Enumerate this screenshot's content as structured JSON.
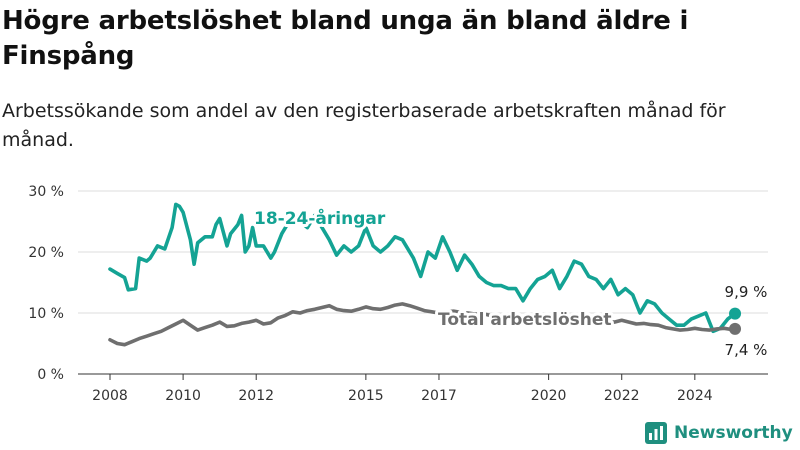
{
  "title": "Högre arbetslöshet bland unga än bland äldre i Finspång",
  "subtitle": "Arbetssökande som andel av den registerbaserade arbetskraften månad för månad.",
  "brand": {
    "name": "Newsworthy",
    "color": "#1f8f7f",
    "icon": "bar-chart-icon"
  },
  "colors": {
    "youth": "#14a394",
    "total": "#6f6f6f",
    "grid": "#dddddd"
  },
  "chart_data": {
    "type": "line",
    "y_unit": "%",
    "ylim": [
      0,
      30
    ],
    "y_ticks": [
      0,
      10,
      20,
      30
    ],
    "y_tick_labels": [
      "0 %",
      "10 %",
      "20 %",
      "30 %"
    ],
    "xlim": [
      2008.0,
      2025.4
    ],
    "x_ticks": [
      2008,
      2010,
      2012,
      2015,
      2017,
      2020,
      2022,
      2024
    ],
    "grid": true,
    "legend": "direct labels on lines",
    "series": [
      {
        "name": "18-24-åringar",
        "label": "18-24-åringar",
        "end_label": "9,9 %",
        "x": [
          2008.0,
          2008.2,
          2008.4,
          2008.5,
          2008.7,
          2008.8,
          2009.0,
          2009.1,
          2009.3,
          2009.5,
          2009.7,
          2009.8,
          2009.9,
          2010.0,
          2010.2,
          2010.3,
          2010.4,
          2010.6,
          2010.8,
          2010.9,
          2011.0,
          2011.2,
          2011.3,
          2011.5,
          2011.6,
          2011.7,
          2011.8,
          2011.9,
          2012.0,
          2012.2,
          2012.4,
          2012.5,
          2012.7,
          2012.9,
          2013.0,
          2013.2,
          2013.4,
          2013.6,
          2013.8,
          2014.0,
          2014.2,
          2014.4,
          2014.6,
          2014.8,
          2015.0,
          2015.2,
          2015.4,
          2015.6,
          2015.8,
          2016.0,
          2016.3,
          2016.5,
          2016.7,
          2016.9,
          2017.1,
          2017.3,
          2017.5,
          2017.7,
          2017.9,
          2018.1,
          2018.3,
          2018.5,
          2018.7,
          2018.9,
          2019.1,
          2019.3,
          2019.5,
          2019.7,
          2019.9,
          2020.1,
          2020.3,
          2020.5,
          2020.7,
          2020.9,
          2021.1,
          2021.3,
          2021.5,
          2021.7,
          2021.9,
          2022.1,
          2022.3,
          2022.5,
          2022.7,
          2022.9,
          2023.1,
          2023.3,
          2023.5,
          2023.7,
          2023.9,
          2024.1,
          2024.3,
          2024.5,
          2024.7,
          2024.9,
          2025.1
        ],
        "y": [
          17.2,
          16.5,
          15.8,
          13.8,
          14,
          19,
          18.5,
          19,
          21,
          20.5,
          24,
          27.8,
          27.5,
          26.5,
          22,
          18,
          21.5,
          22.5,
          22.5,
          24.5,
          25.5,
          21,
          23,
          24.5,
          26,
          20,
          21,
          24,
          21,
          21,
          19,
          20,
          23,
          25,
          24.5,
          25,
          24,
          26,
          24,
          22,
          19.5,
          21,
          20,
          21,
          24,
          21,
          20,
          21,
          22.5,
          22,
          19,
          16,
          20,
          19,
          22.5,
          20,
          17,
          19.5,
          18,
          16,
          15,
          14.5,
          14.5,
          14,
          14,
          12,
          14,
          15.5,
          16,
          17,
          14,
          16,
          18.5,
          18,
          16,
          15.5,
          14,
          15.5,
          13,
          14,
          13,
          10,
          12,
          11.5,
          10,
          9,
          8,
          8,
          9,
          9.5,
          10,
          7,
          7.5,
          9,
          9.9
        ]
      },
      {
        "name": "Total arbetslöshet",
        "label": "Total arbetslöshet",
        "end_label": "7,4 %",
        "x": [
          2008.0,
          2008.2,
          2008.4,
          2008.6,
          2008.8,
          2009.0,
          2009.2,
          2009.4,
          2009.6,
          2009.8,
          2010.0,
          2010.2,
          2010.4,
          2010.6,
          2010.8,
          2011.0,
          2011.2,
          2011.4,
          2011.6,
          2011.8,
          2012.0,
          2012.2,
          2012.4,
          2012.6,
          2012.8,
          2013.0,
          2013.2,
          2013.4,
          2013.6,
          2013.8,
          2014.0,
          2014.2,
          2014.4,
          2014.6,
          2014.8,
          2015.0,
          2015.2,
          2015.4,
          2015.6,
          2015.8,
          2016.0,
          2016.2,
          2016.4,
          2016.6,
          2016.8,
          2017.0,
          2017.2,
          2017.4,
          2017.6,
          2017.8,
          2018.0,
          2018.2,
          2018.4,
          2018.6,
          2018.8,
          2019.0,
          2019.2,
          2019.4,
          2019.6,
          2019.8,
          2020.0,
          2020.2,
          2020.4,
          2020.6,
          2020.8,
          2021.0,
          2021.2,
          2021.4,
          2021.6,
          2021.8,
          2022.0,
          2022.2,
          2022.4,
          2022.6,
          2022.8,
          2023.0,
          2023.2,
          2023.4,
          2023.6,
          2023.8,
          2024.0,
          2024.2,
          2024.4,
          2024.6,
          2024.8,
          2025.0,
          2025.1
        ],
        "y": [
          5.6,
          5.0,
          4.8,
          5.3,
          5.8,
          6.2,
          6.6,
          7.0,
          7.6,
          8.2,
          8.8,
          8.0,
          7.2,
          7.6,
          8.0,
          8.5,
          7.8,
          7.9,
          8.3,
          8.5,
          8.8,
          8.2,
          8.4,
          9.2,
          9.6,
          10.2,
          10.0,
          10.4,
          10.6,
          10.9,
          11.2,
          10.6,
          10.4,
          10.3,
          10.6,
          11.0,
          10.7,
          10.6,
          10.9,
          11.3,
          11.5,
          11.2,
          10.8,
          10.4,
          10.2,
          10.0,
          10.2,
          10.3,
          10.1,
          10.0,
          9.8,
          9.9,
          9.6,
          9.6,
          9.5,
          9.6,
          9.4,
          9.3,
          9.2,
          9.4,
          9.6,
          9.3,
          9.5,
          9.2,
          9.0,
          8.9,
          8.8,
          8.9,
          8.7,
          8.5,
          8.8,
          8.5,
          8.2,
          8.3,
          8.1,
          8.0,
          7.6,
          7.4,
          7.2,
          7.3,
          7.5,
          7.3,
          7.2,
          7.4,
          7.5,
          7.3,
          7.4
        ]
      }
    ]
  }
}
